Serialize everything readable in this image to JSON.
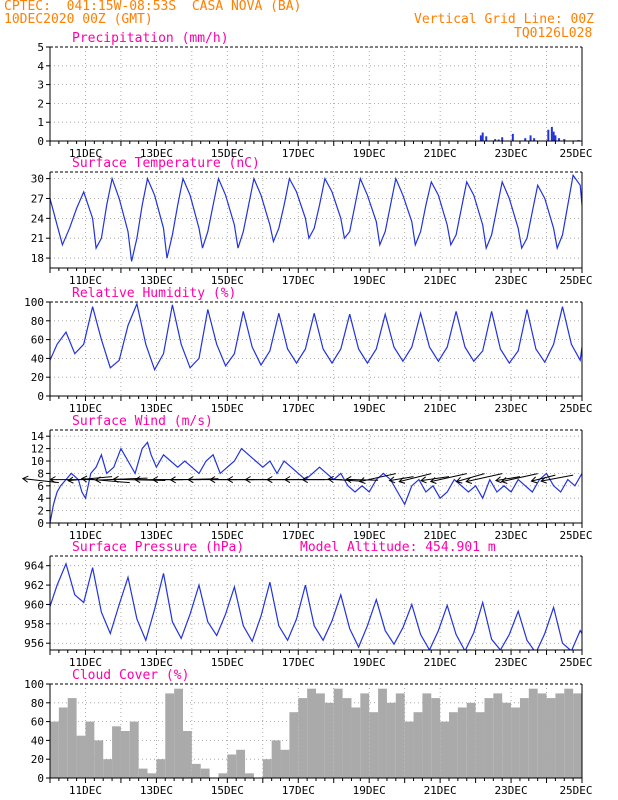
{
  "header": {
    "line1_left": "CPTEC:  041:15W-08:53S  CASA NOVA (BA)",
    "line2_left": "10DEC2020 00Z (GMT)",
    "line1_right": "Vertical Grid Line: 00Z",
    "line2_right": "TQ0126L028",
    "color": "#ff7f00"
  },
  "colors": {
    "title": "#ff00aa",
    "series": "#2233dd",
    "cloud": "#aaaaaa",
    "wind_arrow": "#000000",
    "grid": "#999999"
  },
  "x_axis": {
    "range_days": [
      "10DEC",
      "25DEC"
    ],
    "tick_labels": [
      "11DEC",
      "13DEC",
      "15DEC",
      "17DEC",
      "19DEC",
      "21DEC",
      "23DEC",
      "25DEC"
    ]
  },
  "chart_data": [
    {
      "id": "precip",
      "type": "bar",
      "title": "Precipitation (mm/h)",
      "ylim": [
        0,
        5
      ],
      "yticks": [
        "0",
        "1",
        "2",
        "3",
        "4",
        "5"
      ],
      "grid": true,
      "x": [
        12.45,
        13.3,
        22.15,
        22.2,
        22.3,
        22.55,
        22.65,
        22.75,
        23.05,
        23.4,
        23.55,
        23.65,
        24.05,
        24.15,
        24.2,
        24.25,
        24.35,
        24.5,
        24.9
      ],
      "values": [
        0.02,
        0.01,
        0.3,
        0.45,
        0.25,
        0.1,
        0.08,
        0.2,
        0.38,
        0.15,
        0.3,
        0.15,
        0.6,
        0.75,
        0.5,
        0.3,
        0.15,
        0.1,
        0.05
      ]
    },
    {
      "id": "temp",
      "type": "line",
      "title": "Surface Temperature (nC)",
      "ylim": [
        16.5,
        31
      ],
      "yticks": [
        "18",
        "21",
        "24",
        "27",
        "30"
      ],
      "grid": true,
      "x": [
        10.0,
        10.15,
        10.35,
        10.55,
        10.75,
        10.95,
        11.2,
        11.3,
        11.45,
        11.6,
        11.75,
        11.95,
        12.2,
        12.3,
        12.45,
        12.6,
        12.75,
        12.95,
        13.2,
        13.3,
        13.45,
        13.6,
        13.75,
        13.95,
        14.2,
        14.3,
        14.45,
        14.6,
        14.75,
        14.95,
        15.2,
        15.3,
        15.45,
        15.6,
        15.75,
        15.95,
        16.2,
        16.3,
        16.45,
        16.6,
        16.75,
        16.95,
        17.2,
        17.3,
        17.45,
        17.6,
        17.75,
        17.95,
        18.2,
        18.3,
        18.45,
        18.6,
        18.75,
        18.95,
        19.2,
        19.3,
        19.45,
        19.6,
        19.75,
        19.95,
        20.2,
        20.3,
        20.45,
        20.6,
        20.75,
        20.95,
        21.2,
        21.3,
        21.45,
        21.6,
        21.75,
        21.95,
        22.2,
        22.3,
        22.45,
        22.6,
        22.75,
        22.95,
        23.2,
        23.3,
        23.45,
        23.6,
        23.75,
        23.95,
        24.2,
        24.3,
        24.45,
        24.6,
        24.75,
        24.95,
        25.0
      ],
      "values": [
        27.0,
        24.0,
        20.0,
        22.5,
        25.5,
        28.0,
        24.0,
        19.5,
        21.0,
        26.0,
        30.0,
        27.0,
        22.0,
        17.5,
        21.0,
        26.0,
        30.0,
        27.5,
        22.5,
        18.0,
        21.5,
        26.0,
        30.0,
        27.5,
        22.5,
        19.5,
        22.0,
        26.0,
        30.0,
        27.5,
        23.0,
        19.5,
        22.0,
        26.0,
        30.0,
        27.5,
        23.0,
        20.5,
        22.5,
        26.0,
        30.0,
        28.0,
        24.0,
        21.0,
        22.5,
        26.0,
        30.0,
        28.0,
        24.0,
        21.0,
        22.0,
        26.0,
        30.0,
        27.5,
        23.5,
        20.0,
        22.0,
        26.0,
        30.0,
        27.5,
        23.5,
        20.0,
        22.0,
        26.0,
        29.5,
        27.5,
        23.0,
        20.0,
        21.5,
        25.5,
        29.5,
        27.5,
        23.0,
        19.5,
        21.5,
        25.5,
        29.5,
        27.0,
        22.5,
        19.5,
        21.0,
        25.0,
        29.0,
        27.0,
        22.5,
        19.5,
        21.5,
        26.0,
        30.5,
        29.0,
        26.0
      ]
    },
    {
      "id": "rh",
      "type": "line",
      "title": "Relative Humidity (%)",
      "ylim": [
        0,
        100
      ],
      "yticks": [
        "0",
        "20",
        "40",
        "60",
        "80",
        "100"
      ],
      "grid": true,
      "x": [
        10.0,
        10.2,
        10.45,
        10.7,
        10.95,
        11.2,
        11.45,
        11.7,
        11.95,
        12.2,
        12.45,
        12.7,
        12.95,
        13.2,
        13.45,
        13.7,
        13.95,
        14.2,
        14.45,
        14.7,
        14.95,
        15.2,
        15.45,
        15.7,
        15.95,
        16.2,
        16.45,
        16.7,
        16.95,
        17.2,
        17.45,
        17.7,
        17.95,
        18.2,
        18.45,
        18.7,
        18.95,
        19.2,
        19.45,
        19.7,
        19.95,
        20.2,
        20.45,
        20.7,
        20.95,
        21.2,
        21.45,
        21.7,
        21.95,
        22.2,
        22.45,
        22.7,
        22.95,
        23.2,
        23.45,
        23.7,
        23.95,
        24.2,
        24.45,
        24.7,
        24.95,
        25.0
      ],
      "values": [
        38,
        55,
        68,
        45,
        55,
        95,
        60,
        30,
        38,
        75,
        98,
        55,
        28,
        45,
        97,
        55,
        30,
        40,
        92,
        55,
        32,
        45,
        90,
        52,
        33,
        48,
        88,
        50,
        35,
        50,
        88,
        50,
        35,
        50,
        87,
        50,
        35,
        50,
        87,
        52,
        37,
        52,
        88,
        52,
        37,
        52,
        90,
        52,
        37,
        48,
        90,
        50,
        35,
        48,
        92,
        50,
        36,
        55,
        95,
        55,
        38,
        52
      ]
    },
    {
      "id": "wind",
      "type": "line",
      "title": "Surface Wind (m/s)",
      "ylim": [
        0,
        15
      ],
      "yticks": [
        "0",
        "2",
        "4",
        "6",
        "8",
        "10",
        "12",
        "14"
      ],
      "grid": true,
      "x": [
        10.0,
        10.1,
        10.2,
        10.3,
        10.45,
        10.6,
        10.8,
        10.9,
        11.0,
        11.15,
        11.3,
        11.45,
        11.6,
        11.8,
        12.0,
        12.2,
        12.4,
        12.6,
        12.75,
        12.85,
        13.0,
        13.2,
        13.4,
        13.6,
        13.8,
        14.0,
        14.2,
        14.4,
        14.6,
        14.8,
        15.0,
        15.2,
        15.4,
        15.6,
        15.8,
        16.0,
        16.2,
        16.4,
        16.6,
        16.8,
        17.0,
        17.2,
        17.4,
        17.6,
        17.8,
        18.0,
        18.2,
        18.4,
        18.6,
        18.8,
        19.0,
        19.2,
        19.4,
        19.6,
        19.8,
        20.0,
        20.2,
        20.4,
        20.6,
        20.8,
        21.0,
        21.2,
        21.4,
        21.6,
        21.8,
        22.0,
        22.2,
        22.4,
        22.6,
        22.8,
        23.0,
        23.2,
        23.4,
        23.6,
        23.8,
        24.0,
        24.2,
        24.4,
        24.6,
        24.8,
        25.0
      ],
      "values": [
        0,
        3,
        5,
        6,
        7,
        8,
        7,
        5,
        4,
        8,
        9,
        11,
        8,
        9,
        12,
        10,
        8,
        12,
        13,
        11,
        9,
        11,
        10,
        9,
        10,
        9,
        8,
        10,
        11,
        8,
        9,
        10,
        12,
        11,
        10,
        9,
        10,
        8,
        10,
        9,
        8,
        7,
        8,
        9,
        8,
        7,
        8,
        6,
        5,
        6,
        5,
        7,
        8,
        7,
        5,
        3,
        6,
        7,
        5,
        6,
        4,
        5,
        7,
        6,
        5,
        6,
        4,
        7,
        5,
        6,
        5,
        7,
        6,
        5,
        7,
        8,
        6,
        5,
        7,
        6,
        8
      ],
      "vectors": {
        "x": [
          10.25,
          11.25,
          11.75,
          12.25,
          12.75,
          13.25,
          13.75,
          14.25,
          14.75,
          15.25,
          15.75,
          16.25,
          16.75,
          17.25,
          17.75,
          18.25,
          18.75,
          19.25,
          19.75,
          20.25,
          20.75,
          21.25,
          21.75,
          22.25,
          22.75,
          23.25,
          23.75,
          24.25,
          24.75
        ],
        "dx": [
          0.9,
          1.1,
          1.1,
          1.2,
          1.3,
          1.3,
          1.2,
          1.2,
          1.2,
          1.2,
          1.1,
          1.1,
          1.1,
          1.0,
          1.0,
          1.0,
          0.8,
          0.8,
          0.9,
          0.6,
          0.8,
          0.7,
          0.9,
          0.7,
          0.9,
          0.6,
          0.9,
          0.6,
          0.8
        ],
        "dy": [
          1,
          0,
          -1,
          1,
          -0.5,
          0.3,
          0,
          0,
          -0.3,
          0,
          0,
          0,
          0,
          0,
          0,
          0,
          0.5,
          0.2,
          -2,
          -1,
          -2,
          -1,
          -2,
          -2,
          -2,
          -1,
          -2,
          -1.5,
          -1.5
        ]
      }
    },
    {
      "id": "pressure",
      "type": "line",
      "title": "Surface Pressure (hPa)",
      "annotation": "Model Altitude: 454.901 m",
      "ylim": [
        955.3,
        965
      ],
      "yticks": [
        "956",
        "958",
        "960",
        "962",
        "964"
      ],
      "grid": true,
      "x": [
        10.0,
        10.2,
        10.45,
        10.7,
        10.95,
        11.2,
        11.45,
        11.7,
        11.95,
        12.2,
        12.45,
        12.7,
        12.95,
        13.2,
        13.45,
        13.7,
        13.95,
        14.2,
        14.45,
        14.7,
        14.95,
        15.2,
        15.45,
        15.7,
        15.95,
        16.2,
        16.45,
        16.7,
        16.95,
        17.2,
        17.45,
        17.7,
        17.95,
        18.2,
        18.45,
        18.7,
        18.95,
        19.2,
        19.45,
        19.7,
        19.95,
        20.2,
        20.45,
        20.7,
        20.95,
        21.2,
        21.45,
        21.7,
        21.95,
        22.2,
        22.45,
        22.7,
        22.95,
        23.2,
        23.45,
        23.7,
        23.95,
        24.2,
        24.45,
        24.7,
        24.95,
        25.0
      ],
      "values": [
        959.8,
        962.0,
        964.2,
        961.0,
        960.2,
        963.8,
        959.2,
        957.0,
        960.0,
        962.8,
        958.5,
        956.3,
        959.5,
        963.2,
        958.2,
        956.5,
        959.0,
        962.0,
        958.2,
        956.8,
        959.0,
        961.8,
        957.8,
        956.2,
        958.8,
        962.3,
        957.8,
        956.3,
        958.5,
        962.0,
        957.8,
        956.3,
        958.3,
        961.0,
        957.5,
        955.6,
        957.8,
        960.5,
        957.3,
        955.9,
        957.6,
        960.0,
        956.9,
        955.3,
        957.3,
        959.9,
        956.9,
        955.2,
        957.1,
        960.2,
        956.4,
        955.3,
        956.9,
        959.3,
        956.3,
        955.0,
        957.0,
        959.7,
        956.0,
        955.2,
        957.3,
        957.0
      ]
    },
    {
      "id": "cloud",
      "type": "bar",
      "title": "Cloud Cover (%)",
      "ylim": [
        0,
        100
      ],
      "yticks": [
        "0",
        "20",
        "40",
        "60",
        "80",
        "100"
      ],
      "grid": true,
      "x": [
        10.0,
        10.25,
        10.5,
        10.75,
        11.0,
        11.25,
        11.5,
        11.75,
        12.0,
        12.25,
        12.5,
        12.75,
        13.0,
        13.25,
        13.5,
        13.75,
        14.0,
        14.25,
        14.5,
        14.75,
        15.0,
        15.25,
        15.5,
        15.75,
        16.0,
        16.25,
        16.5,
        16.75,
        17.0,
        17.25,
        17.5,
        17.75,
        18.0,
        18.25,
        18.5,
        18.75,
        19.0,
        19.25,
        19.5,
        19.75,
        20.0,
        20.25,
        20.5,
        20.75,
        21.0,
        21.25,
        21.5,
        21.75,
        22.0,
        22.25,
        22.5,
        22.75,
        23.0,
        23.25,
        23.5,
        23.75,
        24.0,
        24.25,
        24.5,
        24.75,
        25.0
      ],
      "values": [
        60,
        75,
        85,
        45,
        60,
        40,
        20,
        55,
        50,
        60,
        10,
        5,
        20,
        90,
        95,
        50,
        15,
        10,
        0,
        5,
        25,
        30,
        5,
        0,
        20,
        40,
        30,
        70,
        85,
        95,
        90,
        80,
        95,
        85,
        75,
        90,
        70,
        95,
        80,
        90,
        60,
        70,
        90,
        85,
        60,
        70,
        75,
        80,
        70,
        85,
        90,
        80,
        75,
        85,
        95,
        90,
        85,
        90,
        95,
        90,
        95
      ]
    }
  ]
}
